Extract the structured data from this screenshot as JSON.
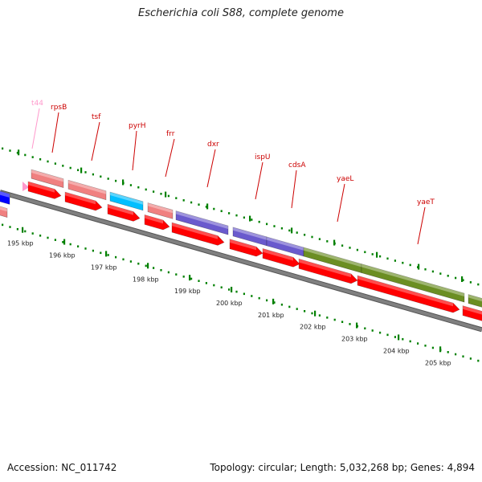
{
  "title": "Escherichia coli S88, complete genome",
  "footer": {
    "accession": "Accession: NC_011742",
    "stats": "Topology: circular; Length: 5,032,268 bp; Genes: 4,894"
  },
  "colors": {
    "rRNA": "#f08080",
    "cds": "#ff0000",
    "tRNA": "#ff99cc",
    "nucleotide_metabolism": "#00bfff",
    "lipid_metabolism": "#6a5acd",
    "cell_envelope": "#6b8e23",
    "other_blue": "#0000ff",
    "backbone": "#808080",
    "ticks": "#008000",
    "label": "#cc0000"
  },
  "scale_labels": [
    "195 kbp",
    "196 kbp",
    "197 kbp",
    "198 kbp",
    "199 kbp",
    "200 kbp",
    "201 kbp",
    "202 kbp",
    "203 kbp",
    "204 kbp",
    "205 kbp"
  ],
  "gene_labels": [
    {
      "name": "t44",
      "color": "#ff99cc"
    },
    {
      "name": "rpsB",
      "color": "#cc0000"
    },
    {
      "name": "tsf",
      "color": "#cc0000"
    },
    {
      "name": "pyrH",
      "color": "#cc0000"
    },
    {
      "name": "frr",
      "color": "#cc0000"
    },
    {
      "name": "dxr",
      "color": "#cc0000"
    },
    {
      "name": "ispU",
      "color": "#cc0000"
    },
    {
      "name": "cdsA",
      "color": "#cc0000"
    },
    {
      "name": "yaeL",
      "color": "#cc0000"
    },
    {
      "name": "yaeT",
      "color": "#cc0000"
    }
  ]
}
